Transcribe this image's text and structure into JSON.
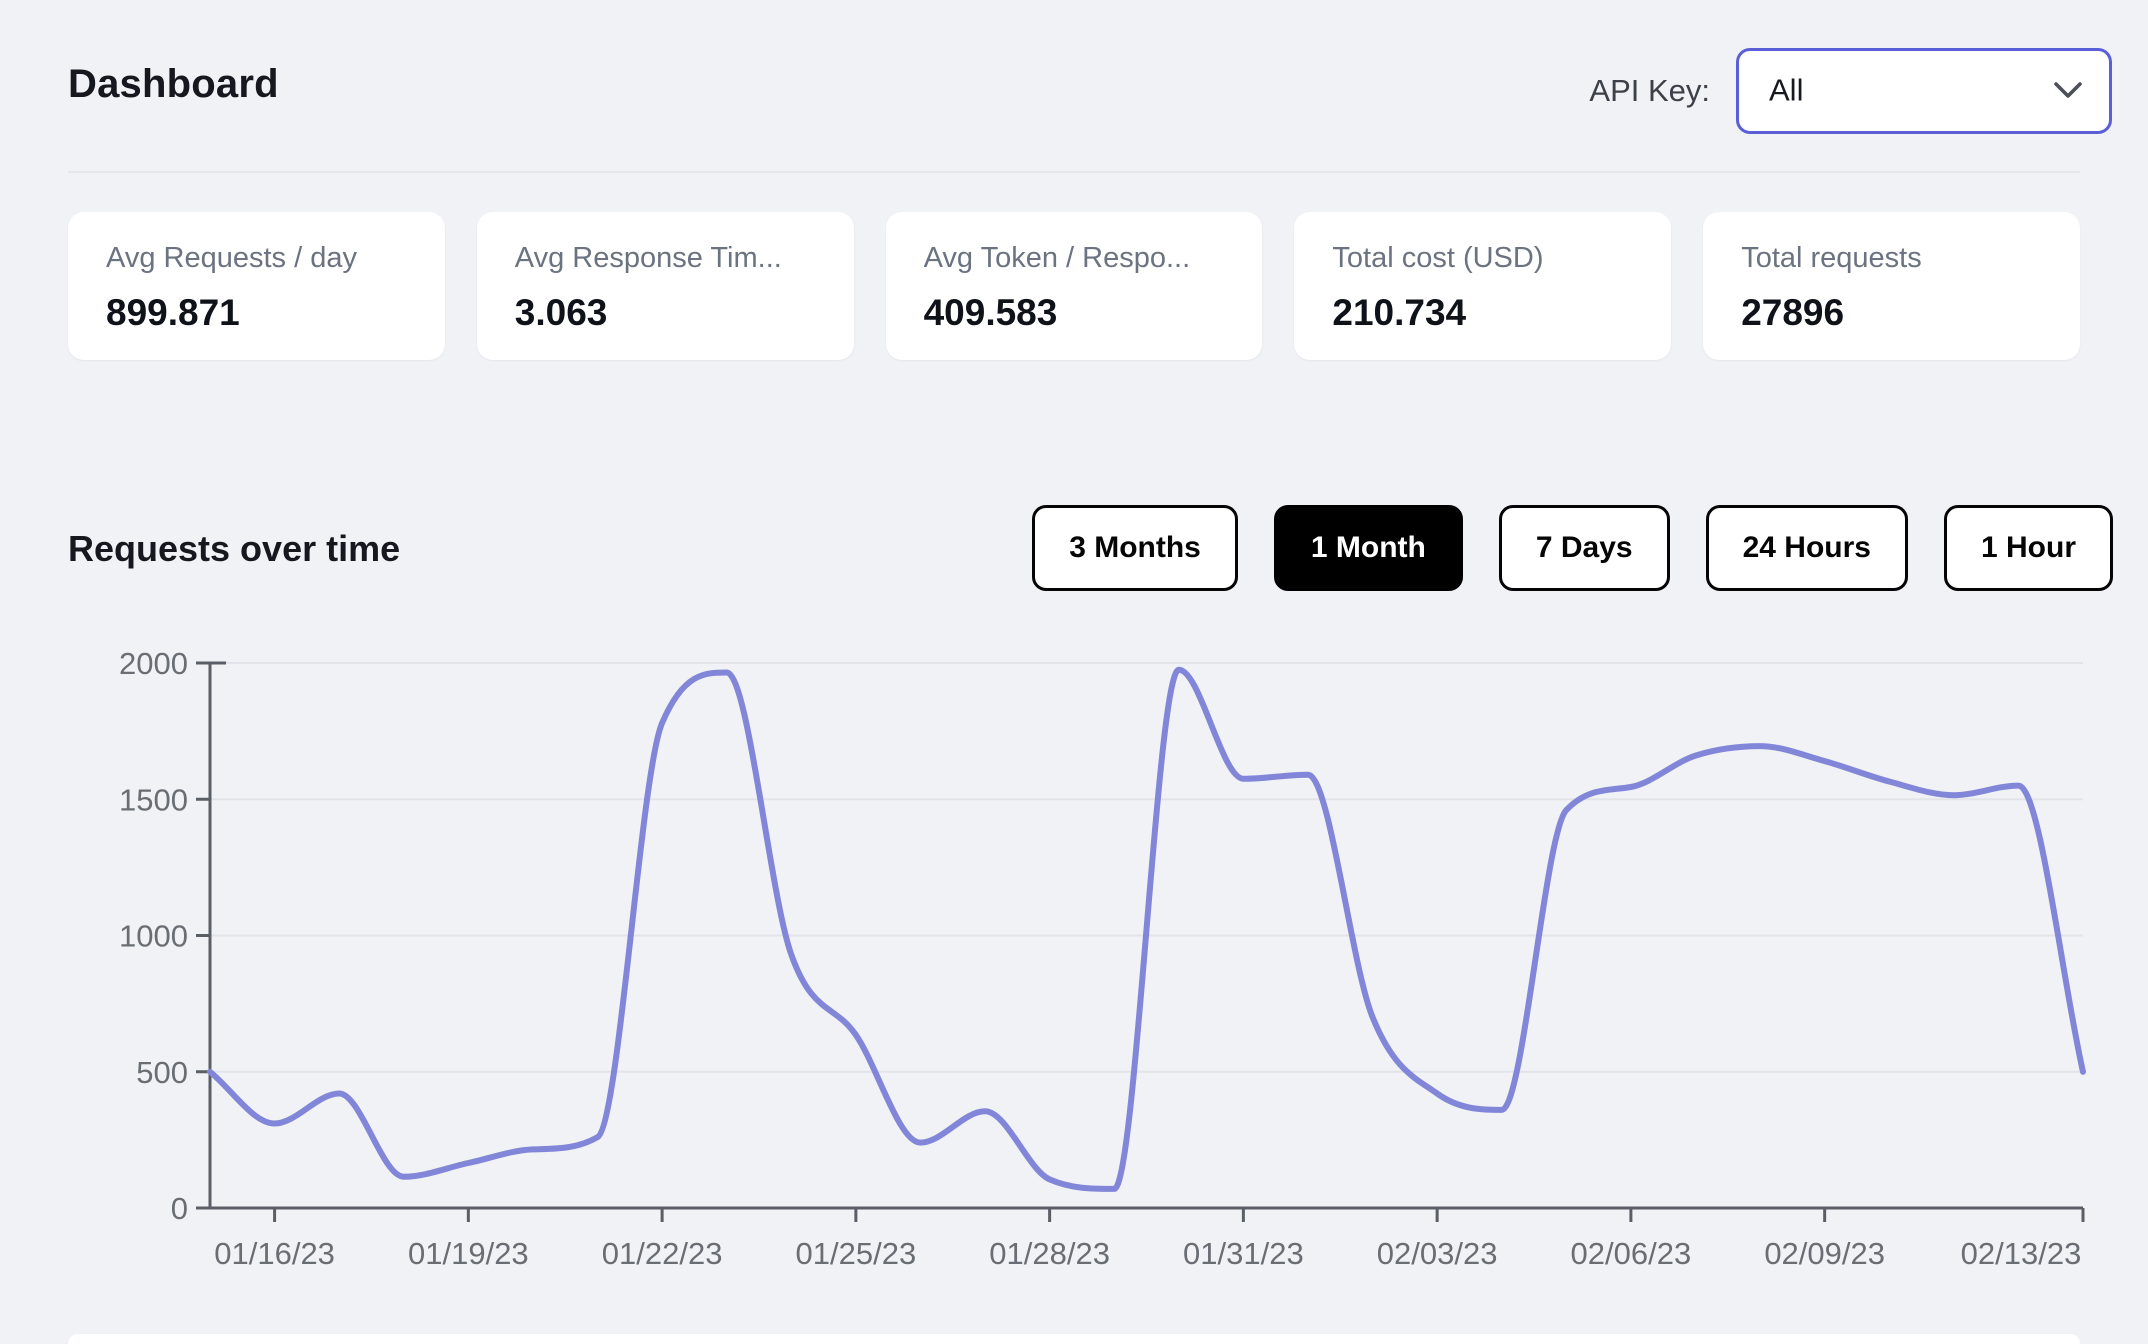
{
  "header": {
    "title": "Dashboard",
    "api_key_label": "API Key:",
    "api_key_value": "All"
  },
  "stats": [
    {
      "label": "Avg Requests / day",
      "value": "899.871"
    },
    {
      "label": "Avg Response Tim...",
      "value": "3.063"
    },
    {
      "label": "Avg Token / Respo...",
      "value": "409.583"
    },
    {
      "label": "Total cost (USD)",
      "value": "210.734"
    },
    {
      "label": "Total requests",
      "value": "27896"
    }
  ],
  "section": {
    "title": "Requests over time",
    "ranges": [
      {
        "label": "3 Months",
        "active": false
      },
      {
        "label": "1 Month",
        "active": true
      },
      {
        "label": "7 Days",
        "active": false
      },
      {
        "label": "24 Hours",
        "active": false
      },
      {
        "label": "1 Hour",
        "active": false
      }
    ]
  },
  "colors": {
    "background": "#f1f2f5",
    "accent_select_border": "#5a5fd8",
    "active_button_bg": "#000000",
    "chart_line": "#8286d9"
  },
  "chart_data": {
    "type": "line",
    "title": "Requests over time",
    "x": [
      "01/15/23",
      "01/16/23",
      "01/17/23",
      "01/18/23",
      "01/19/23",
      "01/20/23",
      "01/21/23",
      "01/22/23",
      "01/23/23",
      "01/24/23",
      "01/25/23",
      "01/26/23",
      "01/27/23",
      "01/28/23",
      "01/29/23",
      "01/30/23",
      "01/31/23",
      "02/01/23",
      "02/02/23",
      "02/03/23",
      "02/04/23",
      "02/05/23",
      "02/06/23",
      "02/07/23",
      "02/08/23",
      "02/09/23",
      "02/10/23",
      "02/11/23",
      "02/12/23",
      "02/13/23"
    ],
    "series": [
      {
        "name": "Requests",
        "values": [
          500,
          310,
          420,
          115,
          165,
          215,
          260,
          1780,
          1965,
          930,
          635,
          240,
          355,
          105,
          70,
          1975,
          1575,
          1590,
          700,
          420,
          360,
          1460,
          1545,
          1660,
          1695,
          1640,
          1565,
          1515,
          1550,
          500
        ]
      }
    ],
    "x_tick_labels": [
      "01/16/23",
      "01/19/23",
      "01/22/23",
      "01/25/23",
      "01/28/23",
      "01/31/23",
      "02/03/23",
      "02/06/23",
      "02/09/23",
      "02/13/23"
    ],
    "y_ticks": [
      0,
      500,
      1000,
      1500,
      2000
    ],
    "ylim": [
      0,
      2000
    ],
    "xlabel": "",
    "ylabel": "",
    "grid": "horizontal",
    "legend": "none",
    "line_color": "#8286d9",
    "axis_color": "#5a5e66",
    "grid_color": "#e2e4e9",
    "tick_label_color": "#696d74"
  }
}
